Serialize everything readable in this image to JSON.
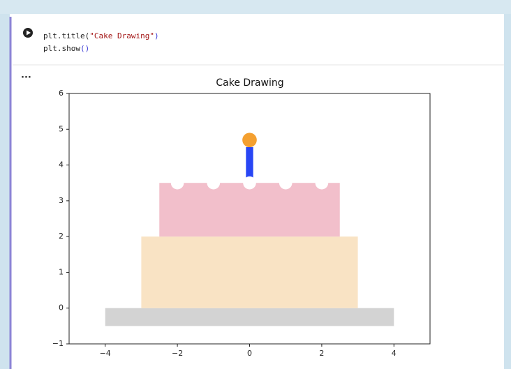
{
  "code": {
    "lines": [
      [
        "plt.title(",
        "\"Cake Drawing\"",
        ")"
      ],
      [
        "plt.show",
        "()"
      ]
    ]
  },
  "output": {
    "marker": "..."
  },
  "chart_data": {
    "type": "shapes",
    "title": "Cake Drawing",
    "xlim": [
      -5,
      5
    ],
    "ylim": [
      -1,
      6
    ],
    "xticks": [
      {
        "value": -4,
        "label": "−4"
      },
      {
        "value": -2,
        "label": "−2"
      },
      0,
      2,
      4
    ],
    "yticks": [
      {
        "value": -1,
        "label": "−1"
      },
      0,
      1,
      2,
      3,
      4,
      5,
      6
    ],
    "rectangles": [
      {
        "x": [
          -4,
          4
        ],
        "y": [
          -0.5,
          0
        ],
        "color": "#d3d3d3"
      },
      {
        "x": [
          -3,
          3
        ],
        "y": [
          0,
          2
        ],
        "color": "#f9e3c4"
      },
      {
        "x": [
          -2.5,
          2.5
        ],
        "y": [
          2,
          3.5
        ],
        "color": "#f2bfcb"
      },
      {
        "x": [
          -0.1,
          0.1
        ],
        "y": [
          3.5,
          4.5
        ],
        "color": "#2846f5"
      }
    ],
    "circles": [
      {
        "x": -2,
        "y": 3.5,
        "r": 0.18,
        "color": "#ffffff"
      },
      {
        "x": -1,
        "y": 3.5,
        "r": 0.18,
        "color": "#ffffff"
      },
      {
        "x": 0,
        "y": 3.5,
        "r": 0.18,
        "color": "#ffffff"
      },
      {
        "x": 1,
        "y": 3.5,
        "r": 0.18,
        "color": "#ffffff"
      },
      {
        "x": 2,
        "y": 3.5,
        "r": 0.18,
        "color": "#ffffff"
      },
      {
        "x": 0,
        "y": 4.7,
        "r": 0.2,
        "color": "#f4a030"
      }
    ]
  }
}
